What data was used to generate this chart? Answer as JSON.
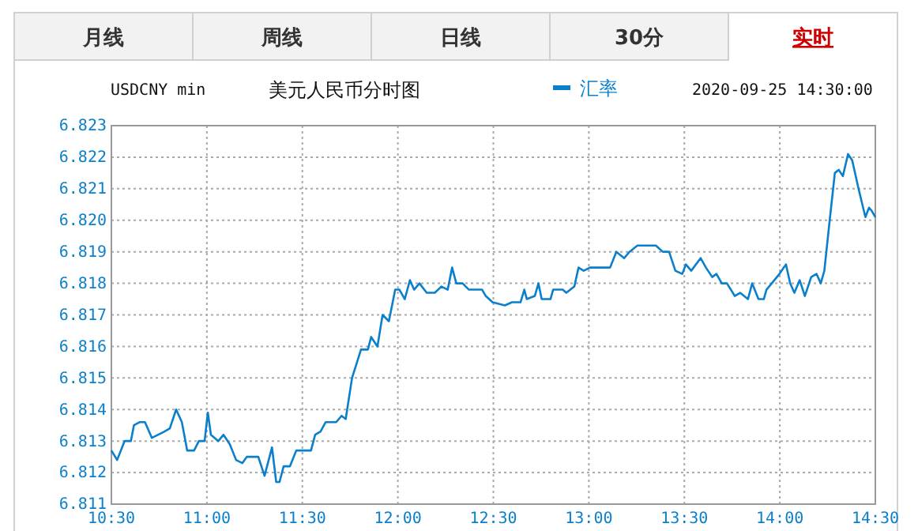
{
  "chart_data": {
    "type": "line",
    "title": "美元人民币分时图",
    "subtitle": "USDCNY min",
    "annotations": [
      "月线",
      "周线",
      "日线",
      "30分",
      "实时",
      "2020-09-25 14:30:00"
    ],
    "legend": "top",
    "grid": true,
    "line_style": "solid",
    "marker": "none",
    "xlim": [
      10.5,
      14.5
    ],
    "xticks": [
      {
        "value": 10.5,
        "label": "10:30"
      },
      {
        "value": 11,
        "label": "11:00"
      },
      {
        "value": 11.5,
        "label": "11:30"
      },
      {
        "value": 12,
        "label": "12:00"
      },
      {
        "value": 12.5,
        "label": "12:30"
      },
      {
        "value": 13,
        "label": "13:00"
      },
      {
        "value": 13.5,
        "label": "13:30"
      },
      {
        "value": 14,
        "label": "14:00"
      },
      {
        "value": 14.5,
        "label": "14:30"
      }
    ],
    "ylim": [
      6.811,
      6.823
    ],
    "yticks": [
      {
        "value": 6.811,
        "label": "6.811"
      },
      {
        "value": 6.812,
        "label": "6.812"
      },
      {
        "value": 6.813,
        "label": "6.813"
      },
      {
        "value": 6.814,
        "label": "6.814"
      },
      {
        "value": 6.815,
        "label": "6.815"
      },
      {
        "value": 6.816,
        "label": "6.816"
      },
      {
        "value": 6.817,
        "label": "6.817"
      },
      {
        "value": 6.818,
        "label": "6.818"
      },
      {
        "value": 6.819,
        "label": "6.819"
      },
      {
        "value": 6.82,
        "label": "6.820"
      },
      {
        "value": 6.821,
        "label": "6.821"
      },
      {
        "value": 6.822,
        "label": "6.822"
      },
      {
        "value": 6.823,
        "label": "6.823"
      }
    ],
    "series": [
      {
        "name": "汇率",
        "color": "#0a7fcc",
        "x": [
          10.5,
          10.53,
          10.569,
          10.602,
          10.618,
          10.649,
          10.676,
          10.712,
          10.745,
          10.778,
          10.806,
          10.839,
          10.869,
          10.897,
          10.933,
          10.958,
          10.988,
          11.005,
          11.021,
          11.06,
          11.087,
          11.12,
          11.153,
          11.186,
          11.209,
          11.269,
          11.302,
          11.341,
          11.363,
          11.38,
          11.402,
          11.435,
          11.468,
          11.545,
          11.567,
          11.595,
          11.622,
          11.677,
          11.705,
          11.727,
          11.76,
          11.807,
          11.843,
          11.86,
          11.893,
          11.92,
          11.953,
          11.986,
          12.008,
          12.036,
          12.063,
          12.085,
          12.113,
          12.151,
          12.193,
          12.228,
          12.261,
          12.284,
          12.306,
          12.339,
          12.372,
          12.441,
          12.46,
          12.496,
          12.56,
          12.598,
          12.642,
          12.662,
          12.675,
          12.717,
          12.736,
          12.753,
          12.799,
          12.813,
          12.863,
          12.882,
          12.924,
          12.946,
          12.973,
          13.006,
          13.111,
          13.144,
          13.185,
          13.213,
          13.254,
          13.323,
          13.351,
          13.387,
          13.42,
          13.453,
          13.489,
          13.508,
          13.536,
          13.585,
          13.613,
          13.646,
          13.668,
          13.696,
          13.723,
          13.764,
          13.792,
          13.833,
          13.855,
          13.888,
          13.916,
          13.93,
          13.971,
          13.998,
          14.032,
          14.054,
          14.076,
          14.104,
          14.131,
          14.164,
          14.192,
          14.214,
          14.233,
          14.261,
          14.288,
          14.308,
          14.33,
          14.357,
          14.379,
          14.412,
          14.448,
          14.467,
          14.481,
          14.5
        ],
        "values": [
          6.8127,
          6.8124,
          6.813,
          6.813,
          6.8135,
          6.8136,
          6.8136,
          6.8131,
          6.8132,
          6.8133,
          6.8134,
          6.814,
          6.8136,
          6.8127,
          6.8127,
          6.813,
          6.813,
          6.8139,
          6.8132,
          6.813,
          6.8132,
          6.8129,
          6.8124,
          6.8123,
          6.8125,
          6.8125,
          6.8119,
          6.8128,
          6.8117,
          6.8117,
          6.8122,
          6.8122,
          6.8127,
          6.8127,
          6.8132,
          6.8133,
          6.8136,
          6.8136,
          6.8138,
          6.8137,
          6.815,
          6.8159,
          6.8159,
          6.8163,
          6.816,
          6.817,
          6.8168,
          6.8178,
          6.8178,
          6.8175,
          6.8181,
          6.8178,
          6.818,
          6.8177,
          6.8177,
          6.8179,
          6.8178,
          6.8185,
          6.818,
          6.818,
          6.8178,
          6.8178,
          6.8176,
          6.8174,
          6.8173,
          6.8174,
          6.8174,
          6.8178,
          6.8175,
          6.8176,
          6.818,
          6.8175,
          6.8175,
          6.8178,
          6.8178,
          6.8177,
          6.8179,
          6.8185,
          6.8184,
          6.8185,
          6.8185,
          6.819,
          6.8188,
          6.819,
          6.8192,
          6.8192,
          6.8192,
          6.819,
          6.819,
          6.8184,
          6.8183,
          6.8186,
          6.8184,
          6.8188,
          6.8185,
          6.8182,
          6.8183,
          6.818,
          6.818,
          6.8176,
          6.8177,
          6.8175,
          6.818,
          6.8175,
          6.8175,
          6.8178,
          6.8181,
          6.8183,
          6.8186,
          6.818,
          6.8177,
          6.8181,
          6.8176,
          6.8182,
          6.8183,
          6.818,
          6.8184,
          6.82,
          6.8215,
          6.8216,
          6.8214,
          6.8221,
          6.8219,
          6.821,
          6.8201,
          6.8204,
          6.8203,
          6.8201
        ]
      }
    ]
  }
}
